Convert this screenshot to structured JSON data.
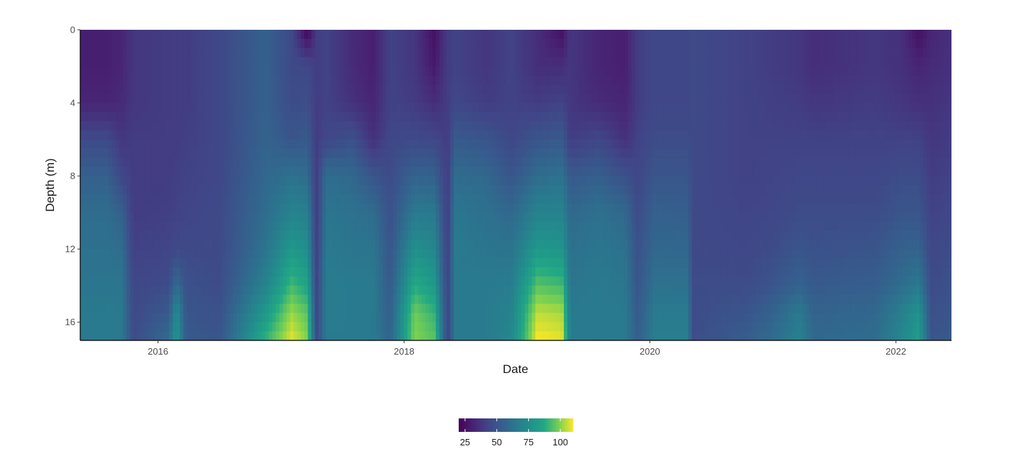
{
  "chart_data": {
    "type": "heatmap",
    "title": "",
    "xlabel": "Date",
    "ylabel": "Depth (m)",
    "x_range": [
      "2015-05-15",
      "2022-06-15"
    ],
    "y_range": [
      0,
      17
    ],
    "y_reversed": true,
    "x_ticks": [
      {
        "date": "2016-01-01",
        "label": "2016"
      },
      {
        "date": "2018-01-01",
        "label": "2018"
      },
      {
        "date": "2020-01-01",
        "label": "2020"
      },
      {
        "date": "2022-01-01",
        "label": "2022"
      }
    ],
    "y_ticks": [
      {
        "value": 0,
        "label": "0"
      },
      {
        "value": 4,
        "label": "4"
      },
      {
        "value": 8,
        "label": "8"
      },
      {
        "value": 12,
        "label": "12"
      },
      {
        "value": 16,
        "label": "16"
      }
    ],
    "colorscale": "viridis",
    "value_range": [
      20,
      110
    ],
    "legend": {
      "placement": "bottom",
      "ticks": [
        {
          "value": 25,
          "label": "25"
        },
        {
          "value": 50,
          "label": "50"
        },
        {
          "value": 75,
          "label": "75"
        },
        {
          "value": 100,
          "label": "100"
        }
      ]
    },
    "depths": [
      0,
      2,
      4,
      6,
      8,
      10,
      12,
      14,
      15.5,
      17
    ],
    "profiles": [
      {
        "date": "2015-05-15",
        "values": [
          30,
          30,
          32,
          45,
          55,
          60,
          62,
          64,
          66,
          66
        ]
      },
      {
        "date": "2015-08-01",
        "values": [
          30,
          30,
          32,
          45,
          55,
          60,
          62,
          64,
          66,
          66
        ]
      },
      {
        "date": "2015-09-15",
        "values": [
          32,
          32,
          34,
          38,
          44,
          55,
          60,
          64,
          65,
          65
        ]
      },
      {
        "date": "2015-10-20",
        "values": [
          38,
          38,
          38,
          40,
          40,
          40,
          42,
          44,
          45,
          46
        ]
      },
      {
        "date": "2016-02-01",
        "values": [
          40,
          40,
          40,
          40,
          40,
          41,
          43,
          46,
          52,
          60
        ]
      },
      {
        "date": "2016-02-25",
        "values": [
          40,
          40,
          40,
          40,
          41,
          42,
          45,
          60,
          75,
          80
        ]
      },
      {
        "date": "2016-03-25",
        "values": [
          40,
          40,
          40,
          41,
          42,
          43,
          45,
          48,
          50,
          52
        ]
      },
      {
        "date": "2016-07-01",
        "values": [
          44,
          44,
          44,
          44,
          44,
          45,
          45,
          46,
          48,
          50
        ]
      },
      {
        "date": "2016-11-15",
        "values": [
          55,
          55,
          55,
          56,
          58,
          60,
          63,
          70,
          80,
          90
        ]
      },
      {
        "date": "2017-02-01",
        "values": [
          45,
          45,
          46,
          50,
          62,
          70,
          80,
          92,
          102,
          108
        ]
      },
      {
        "date": "2017-03-20",
        "values": [
          20,
          45,
          47,
          52,
          60,
          68,
          75,
          85,
          95,
          100
        ]
      },
      {
        "date": "2017-04-15",
        "values": [
          40,
          40,
          40,
          40,
          40,
          40,
          41,
          42,
          43,
          44
        ]
      },
      {
        "date": "2017-05-15",
        "values": [
          42,
          42,
          42,
          44,
          60,
          64,
          66,
          67,
          67,
          66
        ]
      },
      {
        "date": "2017-08-01",
        "values": [
          34,
          34,
          36,
          48,
          58,
          62,
          64,
          66,
          66,
          66
        ]
      },
      {
        "date": "2017-10-01",
        "values": [
          30,
          30,
          32,
          36,
          50,
          60,
          64,
          66,
          66,
          66
        ]
      },
      {
        "date": "2017-11-20",
        "values": [
          42,
          42,
          42,
          44,
          46,
          48,
          50,
          52,
          54,
          56
        ]
      },
      {
        "date": "2018-02-01",
        "values": [
          38,
          38,
          40,
          45,
          56,
          66,
          76,
          88,
          98,
          100
        ]
      },
      {
        "date": "2018-04-01",
        "values": [
          25,
          28,
          35,
          44,
          55,
          65,
          72,
          80,
          90,
          95
        ]
      },
      {
        "date": "2018-05-10",
        "values": [
          40,
          40,
          40,
          40,
          40,
          40,
          41,
          42,
          42,
          42
        ]
      },
      {
        "date": "2018-06-01",
        "values": [
          42,
          42,
          44,
          52,
          60,
          64,
          66,
          66,
          66,
          66
        ]
      },
      {
        "date": "2018-09-01",
        "values": [
          38,
          38,
          40,
          50,
          58,
          62,
          64,
          66,
          66,
          66
        ]
      },
      {
        "date": "2018-11-15",
        "values": [
          42,
          42,
          42,
          44,
          50,
          58,
          63,
          67,
          70,
          72
        ]
      },
      {
        "date": "2019-02-01",
        "values": [
          35,
          35,
          40,
          50,
          60,
          70,
          80,
          95,
          105,
          110
        ]
      },
      {
        "date": "2019-04-15",
        "values": [
          25,
          35,
          42,
          52,
          62,
          70,
          78,
          92,
          103,
          108
        ]
      },
      {
        "date": "2019-05-10",
        "values": [
          38,
          38,
          38,
          40,
          52,
          58,
          62,
          64,
          66,
          66
        ]
      },
      {
        "date": "2019-08-01",
        "values": [
          32,
          32,
          34,
          44,
          54,
          62,
          64,
          66,
          66,
          66
        ]
      },
      {
        "date": "2019-10-20",
        "values": [
          30,
          30,
          32,
          36,
          48,
          58,
          62,
          64,
          66,
          66
        ]
      },
      {
        "date": "2019-11-25",
        "values": [
          40,
          40,
          40,
          42,
          44,
          46,
          48,
          50,
          52,
          54
        ]
      },
      {
        "date": "2020-01-15",
        "values": [
          44,
          44,
          44,
          46,
          50,
          55,
          58,
          62,
          66,
          68
        ]
      },
      {
        "date": "2020-04-25",
        "values": [
          44,
          44,
          44,
          46,
          50,
          54,
          58,
          62,
          66,
          68
        ]
      },
      {
        "date": "2020-05-05",
        "values": [
          45,
          45,
          45,
          45,
          45,
          45,
          45,
          46,
          46,
          46
        ]
      },
      {
        "date": "2020-10-15",
        "values": [
          42,
          42,
          42,
          42,
          42,
          43,
          44,
          46,
          50,
          54
        ]
      },
      {
        "date": "2021-01-01",
        "values": [
          40,
          40,
          41,
          42,
          43,
          44,
          46,
          50,
          56,
          60
        ]
      },
      {
        "date": "2021-03-20",
        "values": [
          38,
          38,
          40,
          42,
          44,
          46,
          50,
          56,
          66,
          70
        ]
      },
      {
        "date": "2021-05-01",
        "values": [
          35,
          35,
          38,
          42,
          44,
          46,
          48,
          52,
          56,
          58
        ]
      },
      {
        "date": "2021-11-01",
        "values": [
          38,
          38,
          40,
          42,
          44,
          46,
          50,
          54,
          58,
          60
        ]
      },
      {
        "date": "2022-01-15",
        "values": [
          36,
          36,
          38,
          42,
          46,
          50,
          55,
          60,
          68,
          72
        ]
      },
      {
        "date": "2022-03-10",
        "values": [
          25,
          32,
          36,
          42,
          46,
          50,
          56,
          66,
          78,
          82
        ]
      },
      {
        "date": "2022-04-15",
        "values": [
          32,
          34,
          36,
          38,
          40,
          42,
          44,
          46,
          48,
          50
        ]
      },
      {
        "date": "2022-06-15",
        "values": [
          36,
          36,
          38,
          40,
          42,
          44,
          46,
          48,
          50,
          52
        ]
      }
    ]
  }
}
